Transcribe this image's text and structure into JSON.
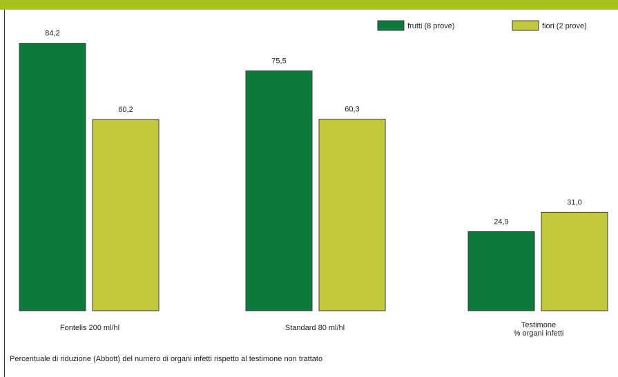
{
  "colors": {
    "band": "#a6c21e",
    "series_frutti": "#0b7a3b",
    "series_fiori": "#c3c93c",
    "bar_stroke": "#3a3a3a"
  },
  "chart_data": {
    "type": "bar",
    "title": "",
    "xlabel": "",
    "ylabel": "",
    "ylim": [
      0,
      100
    ],
    "grid": false,
    "legend_position": "top-right",
    "categories": [
      "Fontelis 200 ml/hl",
      "Standard 80 ml/hl",
      "Testimone\n% organi infetti"
    ],
    "series": [
      {
        "name": "frutti (8 prove)",
        "values": [
          84.2,
          75.5,
          24.9
        ],
        "labels": [
          "84,2",
          "75,5",
          "24,9"
        ]
      },
      {
        "name": "fiori (2 prove)",
        "values": [
          60.2,
          60.3,
          31.0
        ],
        "labels": [
          "60,2",
          "60,3",
          "31,0"
        ]
      }
    ],
    "caption": "Percentuale di riduzione  (Abbott) del numero di organi infetti rispetto al testimone non trattato"
  }
}
